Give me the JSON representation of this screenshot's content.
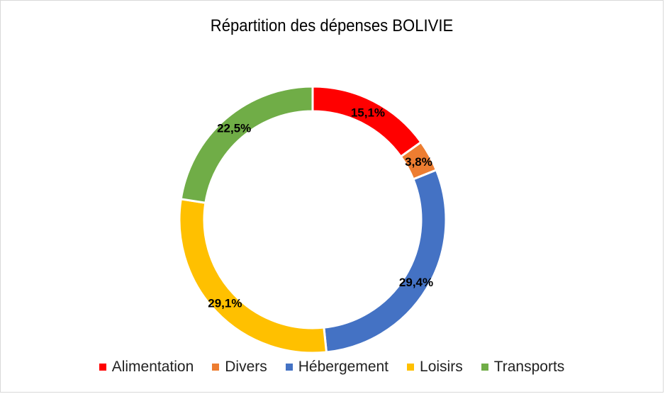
{
  "chart_data": {
    "type": "pie",
    "variant": "donut",
    "title": "Répartition des dépenses BOLIVIE",
    "categories": [
      "Alimentation",
      "Divers",
      "Hébergement",
      "Loisirs",
      "Transports"
    ],
    "values": [
      15.1,
      3.8,
      29.4,
      29.1,
      22.5
    ],
    "value_labels": [
      "15,1%",
      "3,8%",
      "29,4%",
      "29,1%",
      "22,5%"
    ],
    "colors": [
      "#ff0000",
      "#ed7d31",
      "#4472c4",
      "#ffc000",
      "#70ad47"
    ],
    "legend_position": "bottom",
    "grid": false
  }
}
